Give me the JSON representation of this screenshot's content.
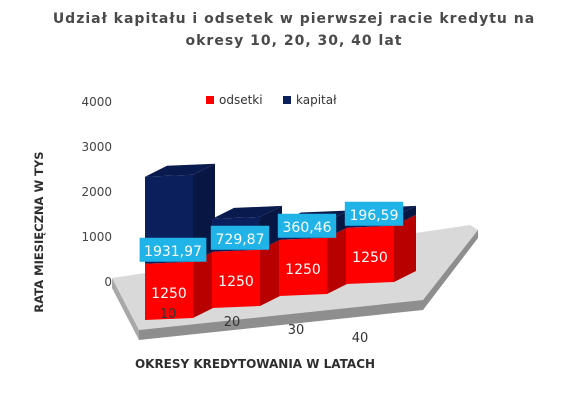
{
  "chart_data": {
    "type": "bar",
    "stacked": true,
    "style": "3d",
    "title": "Udział kapitału i odsetek w pierwszej racie kredytu na okresy 10, 20, 30, 40 lat",
    "title_lines": [
      "Udział kapitału i odsetek w pierwszej racie kredytu na",
      "okresy 10, 20, 30, 40 lat"
    ],
    "xlabel": "OKRESY KREDYTOWANIA W LATACH",
    "ylabel": "RATA MIESIĘCZNA W TYS",
    "categories": [
      "10",
      "20",
      "30",
      "40"
    ],
    "y_ticks": [
      "0",
      "1000",
      "2000",
      "3000",
      "4000"
    ],
    "ylim": [
      0,
      4000
    ],
    "legend_position": "top",
    "series": [
      {
        "name": "odsetki",
        "color": "#ff0000",
        "values": [
          1250,
          1250,
          1250,
          1250
        ],
        "labels": [
          "1250",
          "1250",
          "1250",
          "1250"
        ]
      },
      {
        "name": "kapitał",
        "color": "#0a1f5c",
        "values": [
          1931.97,
          729.87,
          360.46,
          196.59
        ],
        "labels": [
          "1931,97",
          "729,87",
          "360,46",
          "196,59"
        ]
      }
    ],
    "label_box_color": "#1fb3e8",
    "floor_color": "#8e8e8e"
  }
}
